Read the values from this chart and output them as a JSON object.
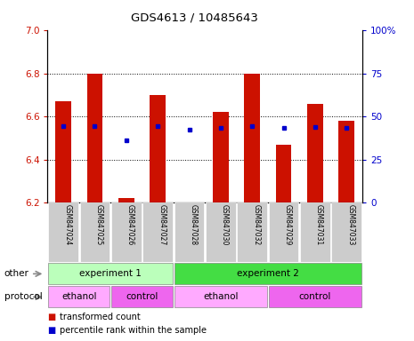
{
  "title": "GDS4613 / 10485643",
  "samples": [
    "GSM847024",
    "GSM847025",
    "GSM847026",
    "GSM847027",
    "GSM847028",
    "GSM847030",
    "GSM847032",
    "GSM847029",
    "GSM847031",
    "GSM847033"
  ],
  "bar_tops": [
    6.67,
    6.8,
    6.22,
    6.7,
    6.2,
    6.62,
    6.8,
    6.47,
    6.66,
    6.58
  ],
  "bar_bottom": 6.2,
  "blue_dots": [
    6.555,
    6.555,
    6.49,
    6.555,
    6.54,
    6.545,
    6.555,
    6.545,
    6.55,
    6.545
  ],
  "ylim": [
    6.2,
    7.0
  ],
  "yticks_left": [
    6.2,
    6.4,
    6.6,
    6.8,
    7.0
  ],
  "yticks_right": [
    0,
    25,
    50,
    75,
    100
  ],
  "bar_color": "#cc1100",
  "dot_color": "#0000cc",
  "groups_other": [
    {
      "label": "experiment 1",
      "start": 0,
      "end": 4,
      "color": "#bbffbb"
    },
    {
      "label": "experiment 2",
      "start": 4,
      "end": 10,
      "color": "#44dd44"
    }
  ],
  "groups_protocol": [
    {
      "label": "ethanol",
      "start": 0,
      "end": 2,
      "color": "#ffaaff"
    },
    {
      "label": "control",
      "start": 2,
      "end": 4,
      "color": "#ee66ee"
    },
    {
      "label": "ethanol",
      "start": 4,
      "end": 7,
      "color": "#ffaaff"
    },
    {
      "label": "control",
      "start": 7,
      "end": 10,
      "color": "#ee66ee"
    }
  ],
  "legend_items": [
    {
      "label": "transformed count",
      "color": "#cc1100"
    },
    {
      "label": "percentile rank within the sample",
      "color": "#0000cc"
    }
  ],
  "label_other": "other",
  "label_protocol": "protocol",
  "tick_bg_color": "#cccccc",
  "left_label_color": "#555555"
}
